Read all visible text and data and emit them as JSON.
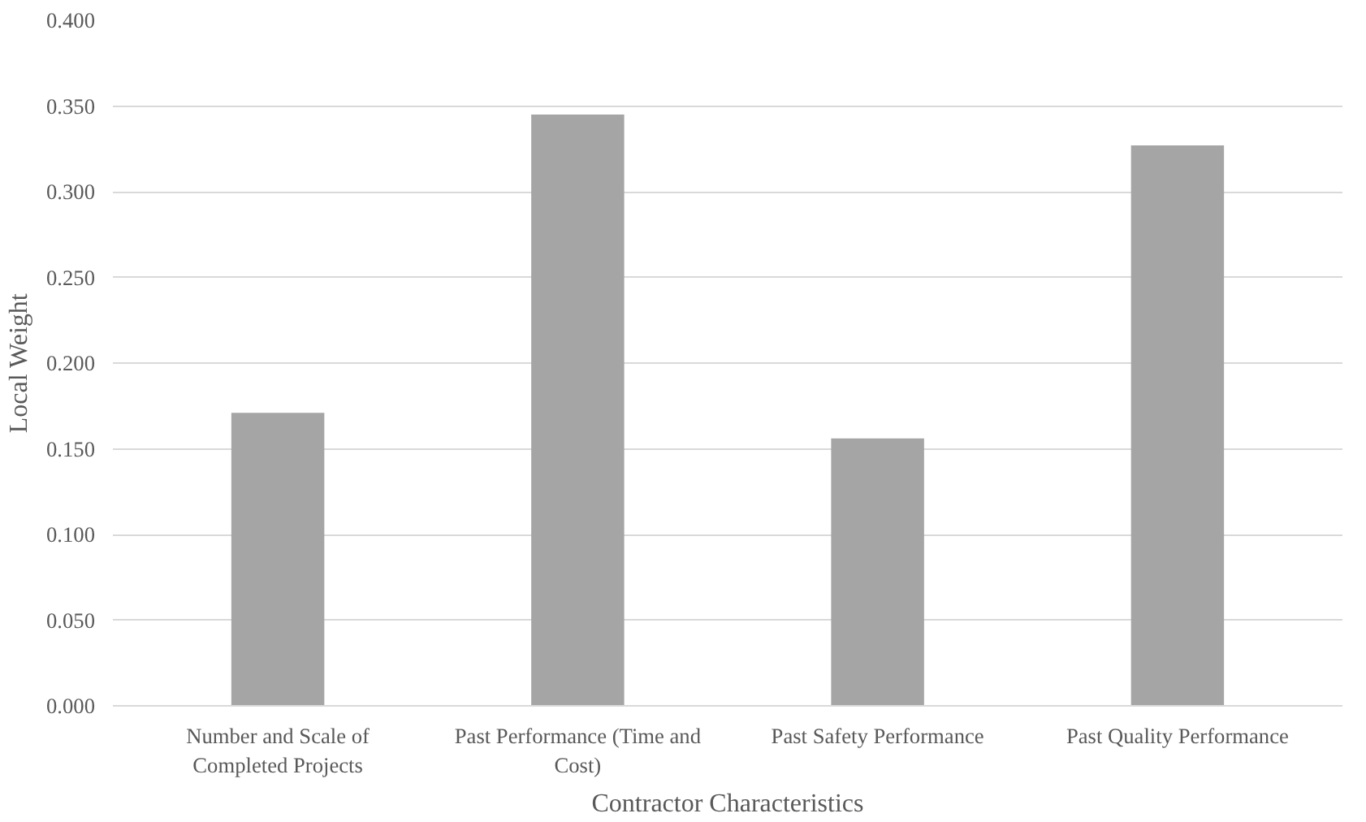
{
  "chart_data": {
    "type": "bar",
    "xlabel": "Contractor Characteristics",
    "ylabel": "Local Weight",
    "categories": [
      "Number and Scale of Completed Projects",
      "Past Performance (Time and Cost)",
      "Past Safety Performance",
      "Past Quality Performance"
    ],
    "values": [
      0.171,
      0.345,
      0.156,
      0.327
    ],
    "color": "#a5a5a5",
    "ylim": [
      0,
      0.4
    ],
    "yticks": [
      {
        "value": 0,
        "label": "0.000"
      },
      {
        "value": 0.05,
        "label": "0.050"
      },
      {
        "value": 0.1,
        "label": "0.100"
      },
      {
        "value": 0.15,
        "label": "0.150"
      },
      {
        "value": 0.2,
        "label": "0.200"
      },
      {
        "value": 0.25,
        "label": "0.250"
      },
      {
        "value": 0.3,
        "label": "0.300"
      },
      {
        "value": 0.35,
        "label": "0.350"
      },
      {
        "value": 0.4,
        "label": "0.400"
      }
    ],
    "grid": "y"
  }
}
